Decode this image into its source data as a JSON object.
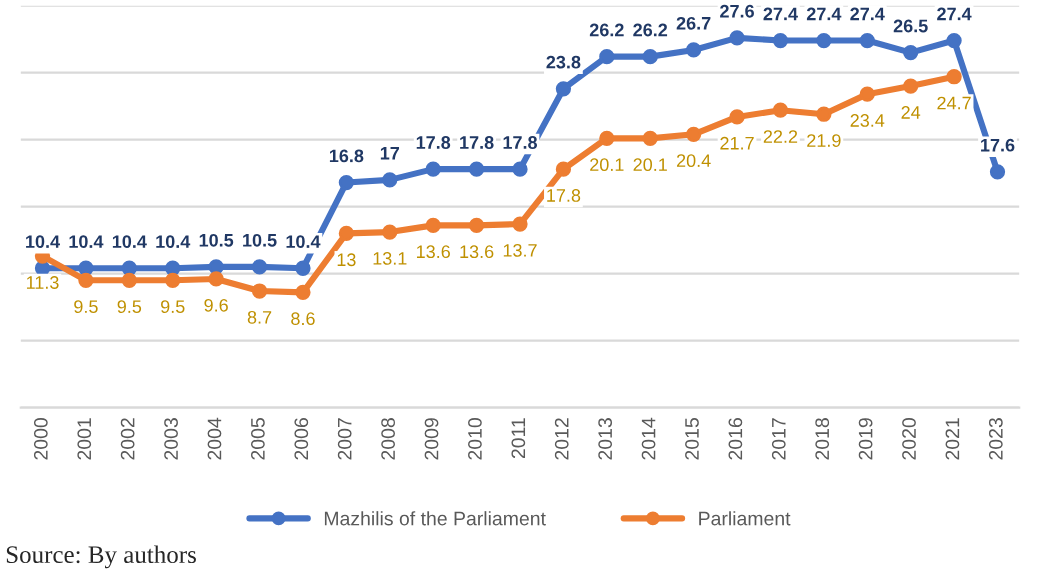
{
  "chart_data": {
    "type": "line",
    "categories": [
      "2000",
      "2001",
      "2002",
      "2003",
      "2004",
      "2005",
      "2006",
      "2007",
      "2008",
      "2009",
      "2010",
      "2011",
      "2012",
      "2013",
      "2014",
      "2015",
      "2016",
      "2017",
      "2018",
      "2019",
      "2020",
      "2021",
      "2023"
    ],
    "series": [
      {
        "name": "Mazhilis of the Parliament",
        "color": "#4472c4",
        "values": [
          10.4,
          10.4,
          10.4,
          10.4,
          10.5,
          10.5,
          10.4,
          16.8,
          17,
          17.8,
          17.8,
          17.8,
          23.8,
          26.2,
          26.2,
          26.7,
          27.6,
          27.4,
          27.4,
          27.4,
          26.5,
          27.4,
          17.6
        ]
      },
      {
        "name": "Parliament",
        "color": "#ed7d31",
        "values": [
          11.3,
          9.5,
          9.5,
          9.5,
          9.6,
          8.7,
          8.6,
          13,
          13.1,
          13.6,
          13.6,
          13.7,
          17.8,
          20.1,
          20.1,
          20.4,
          21.7,
          22.2,
          21.9,
          23.4,
          24,
          24.7,
          null
        ]
      }
    ],
    "ylim": [
      0,
      30
    ],
    "yticks": [
      {
        "value": 0,
        "label": null
      },
      {
        "value": 5,
        "label": null
      },
      {
        "value": 10,
        "label": null
      },
      {
        "value": 15,
        "label": null
      },
      {
        "value": 20,
        "label": null
      },
      {
        "value": 25,
        "label": null
      },
      {
        "value": 30,
        "label": null
      }
    ],
    "tick_labels": "x",
    "grid": "y",
    "legend": "bottom",
    "marker": "circle",
    "line_style": "solid",
    "data_labels": true,
    "annotations": [
      "Source: By authors"
    ]
  }
}
